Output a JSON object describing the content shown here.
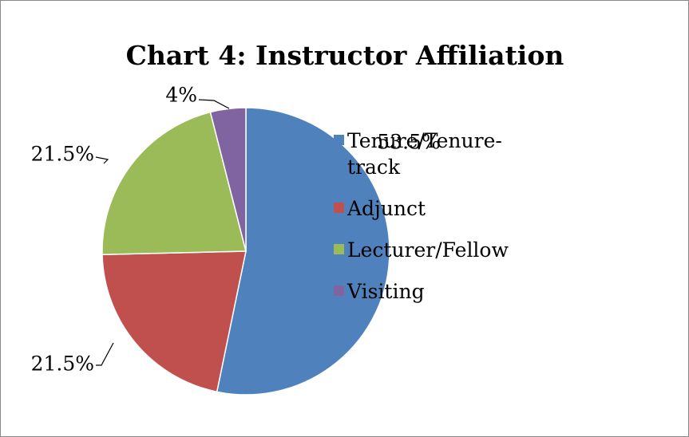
{
  "chart_data": {
    "type": "pie",
    "title": "Chart 4:  Instructor Affiliation",
    "categories": [
      "Tenure/Tenure-track",
      "Adjunct",
      "Lecturer/Fellow",
      "Visiting"
    ],
    "values": [
      53.5,
      21.5,
      21.5,
      4
    ],
    "value_labels": [
      "53.5%",
      "21.5%",
      "21.5%",
      "4%"
    ],
    "colors": [
      "#4f81bd",
      "#c0504d",
      "#9bbb59",
      "#8064a2"
    ],
    "legend": "right"
  }
}
